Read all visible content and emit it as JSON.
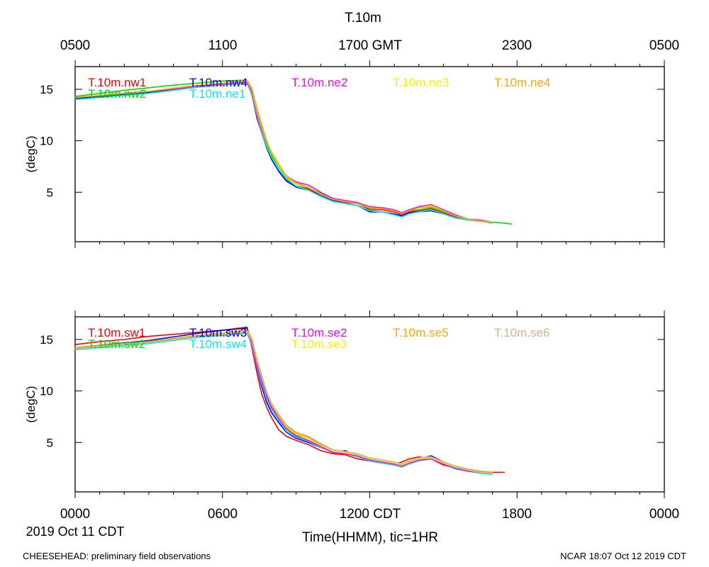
{
  "title": "T.10m",
  "gmt_tick_labels": [
    "0500",
    "1100",
    "1700 GMT",
    "2300",
    "0500"
  ],
  "cdt_tick_labels": [
    "0000",
    "0600",
    "1200 CDT",
    "1800",
    "0000"
  ],
  "date_label": "2019 Oct 11 CDT",
  "xlabel": "Time(HHMM), tic=1HR",
  "footer_left": "CHEESEHEAD: preliminary field observations",
  "footer_right": "NCAR 18:07 Oct 12 2019 CDT",
  "chart_data": [
    {
      "type": "line",
      "panel": "top",
      "ylabel": "(degC)",
      "xlim_hours_cdt": [
        0,
        24
      ],
      "ylim": [
        0.2,
        17.2
      ],
      "yticks": [
        5,
        10,
        15
      ],
      "series": [
        {
          "name": "T.10m.nw1",
          "color": "#ff0000",
          "x": [
            0,
            3,
            5,
            6,
            7,
            7.2,
            7.4,
            7.6,
            7.8,
            8,
            8.3,
            8.6,
            9,
            9.5,
            10,
            10.5,
            11,
            11.5,
            12,
            12.5,
            13,
            13.3,
            13.6,
            14,
            14.5,
            15,
            15.5,
            16,
            16.5,
            17
          ],
          "y": [
            14.2,
            14.8,
            15.3,
            15.5,
            15.7,
            14.6,
            12.2,
            10.8,
            9.3,
            8.3,
            7.2,
            6.2,
            5.6,
            5.3,
            4.8,
            4.3,
            4.0,
            3.9,
            3.3,
            3.3,
            3.1,
            2.8,
            3.1,
            3.2,
            3.4,
            3.0,
            2.6,
            2.3,
            2.2,
            2.1
          ]
        },
        {
          "name": "T.10m.nw2",
          "color": "#00dd00",
          "x": [
            0,
            2,
            4,
            5,
            6,
            7,
            7.2,
            7.4,
            7.6,
            7.8,
            8,
            8.3,
            8.6,
            9,
            9.5,
            10,
            10.5,
            11,
            11.5,
            12,
            12.5,
            13,
            13.3,
            13.6,
            14,
            14.5,
            15,
            15.5,
            16,
            16.5,
            17,
            17.5,
            17.8
          ],
          "y": [
            14.3,
            14.9,
            15.4,
            15.6,
            15.8,
            15.9,
            14.7,
            12.7,
            11.1,
            9.6,
            8.6,
            7.5,
            6.4,
            5.8,
            5.4,
            4.9,
            4.4,
            4.1,
            3.9,
            3.4,
            3.4,
            3.2,
            2.9,
            3.2,
            3.3,
            3.5,
            3.1,
            2.7,
            2.3,
            2.2,
            2.1,
            2.0,
            1.9
          ]
        },
        {
          "name": "T.10m.nw4",
          "color": "#0000ee",
          "x": [
            0,
            3,
            5,
            6,
            7,
            7.2,
            7.4,
            7.6,
            7.8,
            8,
            8.3,
            8.6,
            9,
            9.5,
            10,
            10.5,
            11,
            11.5,
            12,
            12.5,
            13,
            13.3,
            13.6,
            14,
            14.5,
            15,
            15.5,
            16,
            16.5,
            17
          ],
          "y": [
            14.1,
            14.7,
            15.3,
            15.5,
            15.7,
            14.5,
            12.4,
            10.9,
            9.3,
            8.2,
            7.0,
            6.1,
            5.5,
            5.2,
            4.7,
            4.2,
            3.9,
            3.7,
            3.1,
            3.1,
            2.9,
            2.7,
            3.0,
            3.1,
            3.2,
            2.9,
            2.5,
            2.3,
            2.2,
            2.0
          ]
        },
        {
          "name": "T.10m.ne1",
          "color": "#00eeee",
          "x": [
            0,
            3,
            5,
            6,
            7,
            7.2,
            7.4,
            7.6,
            7.8,
            8,
            8.3,
            8.6,
            9,
            9.5,
            10,
            10.5,
            11,
            11.5,
            12,
            12.5,
            13,
            13.3,
            13.6,
            14,
            14.5,
            15,
            15.5,
            16,
            16.5,
            17
          ],
          "y": [
            14.0,
            14.6,
            15.2,
            15.4,
            15.6,
            14.6,
            12.5,
            10.9,
            9.4,
            8.4,
            7.2,
            6.3,
            5.6,
            5.2,
            4.6,
            4.1,
            3.9,
            3.7,
            3.2,
            3.1,
            2.8,
            2.6,
            2.9,
            3.1,
            3.3,
            2.9,
            2.5,
            2.3,
            2.2,
            2.0
          ]
        },
        {
          "name": "T.10m.ne2",
          "color": "#ff00ff",
          "x": [
            0,
            3,
            5,
            6,
            7,
            7.2,
            7.4,
            7.6,
            7.8,
            8,
            8.3,
            8.6,
            9,
            9.5,
            10,
            10.5,
            11,
            11.5,
            12,
            12.5,
            13,
            13.3,
            13.6,
            14,
            14.5,
            15,
            15.5,
            16,
            16.5,
            17
          ],
          "y": [
            14.2,
            14.8,
            15.3,
            15.5,
            15.7,
            14.8,
            12.8,
            11.2,
            9.8,
            8.8,
            7.6,
            6.6,
            6.0,
            5.7,
            5.0,
            4.4,
            4.2,
            4.0,
            3.6,
            3.5,
            3.3,
            3.0,
            3.3,
            3.6,
            3.8,
            3.3,
            2.8,
            2.4,
            2.3,
            2.1
          ]
        },
        {
          "name": "T.10m.ne3",
          "color": "#ffee00",
          "x": [
            0,
            3,
            5,
            6,
            7,
            7.2,
            7.4,
            7.6,
            7.8,
            8,
            8.3,
            8.6,
            9,
            9.5,
            10,
            10.5,
            11,
            11.5,
            12,
            12.5,
            13,
            13.3,
            13.6,
            14,
            14.5,
            15,
            15.5,
            16,
            16.5,
            17
          ],
          "y": [
            14.2,
            14.8,
            15.4,
            15.6,
            15.8,
            15.0,
            13.0,
            11.4,
            9.9,
            8.8,
            7.6,
            6.5,
            5.8,
            5.5,
            4.8,
            4.3,
            4.1,
            3.9,
            3.5,
            3.4,
            3.2,
            2.9,
            3.2,
            3.5,
            3.7,
            3.2,
            2.7,
            2.4,
            2.2,
            2.1
          ]
        },
        {
          "name": "T.10m.ne4",
          "color": "#ffa500",
          "x": [
            0,
            3,
            5,
            6,
            7,
            7.2,
            7.4,
            7.6,
            7.8,
            8,
            8.3,
            8.6,
            9,
            9.5,
            10,
            10.5,
            11,
            11.5,
            12,
            12.5,
            13,
            13.3,
            13.6,
            14,
            14.5,
            15,
            15.5,
            16,
            16.5,
            17
          ],
          "y": [
            14.2,
            14.8,
            15.4,
            15.6,
            15.9,
            15.1,
            13.2,
            11.6,
            10.0,
            8.9,
            7.7,
            6.6,
            5.9,
            5.5,
            4.8,
            4.3,
            4.1,
            3.9,
            3.5,
            3.4,
            3.2,
            2.9,
            3.2,
            3.5,
            3.6,
            3.2,
            2.7,
            2.4,
            2.2,
            2.1
          ]
        }
      ]
    },
    {
      "type": "line",
      "panel": "bottom",
      "ylabel": "(degC)",
      "xlim_hours_cdt": [
        0,
        24
      ],
      "ylim": [
        0.2,
        17.2
      ],
      "yticks": [
        5,
        10,
        15
      ],
      "series": [
        {
          "name": "T.10m.sw1",
          "color": "#ff0000",
          "x": [
            0,
            1,
            2,
            3,
            5,
            6,
            7,
            7.2,
            7.4,
            7.6,
            7.8,
            8,
            8.3,
            8.6,
            9,
            9.5,
            10,
            10.5,
            11,
            11.5,
            12,
            12.5,
            13,
            13.3,
            13.6,
            14,
            14.5,
            15,
            15.5,
            16,
            16.5,
            17,
            17.5
          ],
          "y": [
            14.5,
            14.8,
            15.0,
            15.3,
            15.7,
            15.9,
            16.2,
            14.2,
            11.8,
            9.7,
            8.4,
            7.4,
            6.2,
            5.6,
            5.2,
            4.8,
            4.2,
            3.9,
            3.8,
            3.4,
            3.2,
            3.0,
            2.9,
            3.1,
            3.4,
            3.6,
            3.4,
            2.8,
            2.5,
            2.3,
            2.2,
            2.1,
            2.1
          ]
        },
        {
          "name": "T.10m.sw2",
          "color": "#00dd00",
          "x": [
            0,
            3,
            5,
            6,
            7,
            7.2,
            7.4,
            7.6,
            7.8,
            8,
            8.3,
            8.6,
            9,
            9.5,
            10,
            10.5,
            11,
            11.5,
            12,
            12.5,
            13,
            13.3,
            13.6,
            14,
            14.5,
            15,
            15.5,
            16,
            16.5,
            17
          ],
          "y": [
            14.1,
            14.8,
            15.3,
            15.5,
            15.7,
            14.8,
            12.9,
            11.2,
            9.6,
            8.6,
            7.5,
            6.4,
            5.7,
            5.4,
            4.8,
            4.2,
            4.0,
            3.8,
            3.4,
            3.3,
            3.1,
            2.9,
            3.2,
            3.4,
            3.5,
            3.0,
            2.6,
            2.4,
            2.2,
            2.0
          ]
        },
        {
          "name": "T.10m.sw3",
          "color": "#0000ee",
          "x": [
            0,
            3,
            5,
            6,
            7,
            7.2,
            7.4,
            7.6,
            7.8,
            8,
            8.3,
            8.6,
            9,
            9.5,
            10,
            10.5,
            11,
            11.5,
            12,
            12.5,
            13,
            13.3,
            13.6,
            14,
            14.5,
            15,
            15.5,
            16,
            16.5,
            17
          ],
          "y": [
            14.2,
            14.9,
            15.6,
            15.9,
            16.1,
            14.6,
            12.3,
            10.4,
            8.9,
            7.9,
            6.9,
            6.0,
            5.4,
            5.0,
            4.5,
            4.1,
            4.2,
            3.6,
            3.2,
            3.0,
            2.8,
            2.7,
            3.0,
            3.4,
            3.7,
            3.1,
            2.6,
            2.2,
            2.1,
            2.0
          ]
        },
        {
          "name": "T.10m.sw4",
          "color": "#00eeee",
          "x": [
            0,
            3,
            5,
            6,
            7,
            7.2,
            7.4,
            7.6,
            7.8,
            8,
            8.3,
            8.6,
            9,
            9.5,
            10,
            10.5,
            11,
            11.5,
            12,
            12.5,
            13,
            13.3,
            13.6,
            14,
            14.5,
            15,
            15.5,
            16,
            16.5,
            17
          ],
          "y": [
            14.0,
            14.6,
            15.2,
            15.4,
            15.6,
            14.5,
            12.4,
            10.7,
            9.2,
            8.2,
            7.1,
            6.1,
            5.5,
            5.1,
            4.5,
            4.1,
            3.9,
            3.6,
            3.2,
            3.0,
            2.8,
            2.6,
            2.9,
            3.2,
            3.4,
            2.9,
            2.4,
            2.2,
            2.0,
            1.9
          ]
        },
        {
          "name": "T.10m.se2",
          "color": "#ff00ff",
          "x": [
            0,
            3,
            5,
            6,
            7,
            7.2,
            7.4,
            7.6,
            7.8,
            8,
            8.3,
            8.6,
            9,
            9.5,
            10,
            10.5,
            11,
            11.5,
            12,
            12.5,
            13,
            13.3,
            13.6,
            14,
            14.5,
            15,
            15.5,
            16,
            16.5,
            17
          ],
          "y": [
            14.2,
            14.8,
            15.3,
            15.5,
            15.7,
            14.7,
            12.6,
            11.0,
            9.5,
            8.4,
            7.3,
            6.3,
            5.6,
            5.2,
            4.6,
            4.0,
            3.9,
            3.7,
            3.3,
            3.1,
            2.9,
            2.7,
            3.0,
            3.3,
            3.4,
            2.9,
            2.5,
            2.2,
            2.1,
            2.0
          ]
        },
        {
          "name": "T.10m.se3",
          "color": "#ffee00",
          "x": [
            0,
            3,
            5,
            6,
            7,
            7.2,
            7.4,
            7.6,
            7.8,
            8,
            8.3,
            8.6,
            9,
            9.5,
            10,
            10.5,
            11,
            11.5,
            12,
            12.5,
            13,
            13.3,
            13.6,
            14,
            14.5,
            15,
            15.5,
            16,
            16.5,
            17
          ],
          "y": [
            14.2,
            14.8,
            15.4,
            15.6,
            15.8,
            15.0,
            13.0,
            11.3,
            9.8,
            8.7,
            7.5,
            6.5,
            5.8,
            5.4,
            4.7,
            4.2,
            4.0,
            3.8,
            3.4,
            3.2,
            3.0,
            2.8,
            3.1,
            3.4,
            3.5,
            3.0,
            2.6,
            2.3,
            2.1,
            2.0
          ]
        },
        {
          "name": "T.10m.se5",
          "color": "#ffa500",
          "x": [
            0,
            3,
            5,
            6,
            7,
            7.2,
            7.4,
            7.6,
            7.8,
            8,
            8.3,
            8.6,
            9,
            9.5,
            10,
            10.5,
            11,
            11.5,
            12,
            12.5,
            13,
            13.3,
            13.6,
            14,
            14.5,
            15,
            15.5,
            16,
            16.5,
            17
          ],
          "y": [
            14.2,
            14.8,
            15.4,
            15.6,
            15.9,
            15.1,
            13.1,
            11.5,
            9.9,
            8.8,
            7.6,
            6.6,
            5.9,
            5.5,
            4.8,
            4.3,
            4.1,
            3.9,
            3.5,
            3.3,
            3.1,
            2.9,
            3.2,
            3.5,
            3.6,
            3.1,
            2.7,
            2.4,
            2.2,
            2.1
          ]
        },
        {
          "name": "T.10m.se6",
          "color": "#d2b48c",
          "x": [
            0,
            3,
            5,
            6,
            7,
            7.2,
            7.4,
            7.6,
            7.8,
            8,
            8.3,
            8.6,
            9,
            9.5,
            10,
            10.5,
            11,
            11.5,
            12,
            12.5,
            13,
            13.3,
            13.6,
            14,
            14.5,
            15,
            15.5,
            16,
            16.5,
            17
          ],
          "y": [
            14.1,
            14.7,
            15.3,
            15.5,
            15.7,
            14.9,
            12.9,
            11.3,
            9.8,
            8.8,
            7.7,
            6.7,
            6.0,
            5.6,
            4.9,
            4.3,
            4.1,
            3.9,
            3.5,
            3.3,
            3.1,
            2.9,
            3.2,
            3.5,
            3.6,
            3.1,
            2.7,
            2.3,
            2.1,
            2.0
          ]
        }
      ]
    }
  ]
}
